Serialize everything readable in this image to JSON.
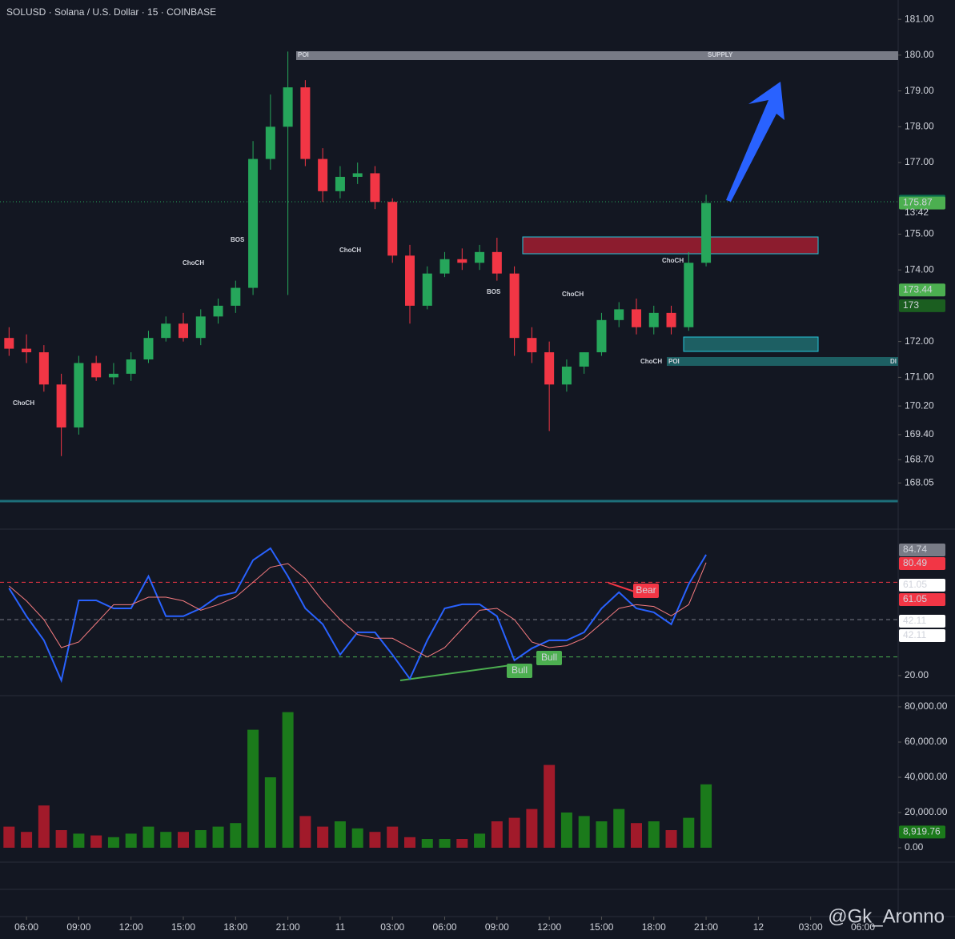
{
  "watermark": "@Gk_Aronno",
  "chart_data": [
    {
      "type": "candlestick",
      "title": "SOLUSD · Solana / U.S. Dollar · 15 · COINBASE",
      "x": [
        -1,
        0,
        1,
        2,
        3,
        4,
        5,
        6,
        7,
        8,
        9,
        10,
        11,
        12,
        13,
        14,
        15,
        16,
        17,
        18,
        19,
        20,
        21,
        22,
        23,
        24,
        25,
        26,
        27,
        28,
        29,
        30,
        31,
        32,
        33,
        34,
        35,
        36,
        37,
        38,
        39
      ],
      "opens": [
        172.1,
        171.8,
        171.7,
        170.8,
        169.6,
        171.4,
        171.0,
        171.1,
        171.5,
        172.1,
        172.5,
        172.1,
        172.7,
        173.0,
        173.5,
        177.1,
        178.0,
        179.1,
        177.1,
        176.2,
        176.6,
        176.7,
        175.9,
        174.4,
        173.0,
        173.9,
        174.3,
        174.2,
        174.5,
        173.9,
        172.1,
        171.7,
        170.8,
        171.3,
        171.7,
        172.6,
        172.9,
        172.4,
        172.8,
        172.4,
        174.2
      ],
      "highs": [
        172.4,
        172.2,
        171.9,
        171.1,
        171.6,
        171.6,
        171.4,
        171.7,
        172.3,
        172.7,
        172.8,
        172.9,
        173.2,
        173.7,
        177.6,
        178.9,
        180.1,
        179.3,
        177.4,
        176.9,
        177.0,
        176.9,
        176.0,
        174.7,
        174.1,
        174.5,
        174.6,
        174.7,
        174.9,
        174.1,
        172.4,
        172.0,
        171.5,
        171.7,
        172.8,
        173.1,
        173.2,
        173.0,
        173.0,
        174.5,
        176.1
      ],
      "lows": [
        171.6,
        171.4,
        170.6,
        168.8,
        169.4,
        170.9,
        170.8,
        170.9,
        171.4,
        172.0,
        172.0,
        171.9,
        172.5,
        172.8,
        173.3,
        176.8,
        173.3,
        176.9,
        175.9,
        176.0,
        176.4,
        175.7,
        174.2,
        172.5,
        172.9,
        173.8,
        174.0,
        174.0,
        173.7,
        171.6,
        171.4,
        169.5,
        170.6,
        171.1,
        171.6,
        172.4,
        172.2,
        172.2,
        172.2,
        172.3,
        174.1
      ],
      "closes": [
        171.8,
        171.7,
        170.8,
        169.6,
        171.4,
        171.0,
        171.1,
        171.5,
        172.1,
        172.5,
        172.1,
        172.7,
        173.0,
        173.5,
        177.1,
        178.0,
        179.1,
        177.1,
        176.2,
        176.6,
        176.7,
        175.9,
        174.4,
        173.0,
        173.9,
        174.3,
        174.2,
        174.5,
        173.9,
        172.1,
        171.7,
        170.8,
        171.3,
        171.7,
        172.6,
        172.9,
        172.4,
        172.8,
        172.4,
        174.2,
        175.87
      ],
      "up_color": "#26a65b",
      "down_color": "#f23645",
      "xlim": [
        -1.52,
        49.93
      ],
      "ylim": [
        167.52,
        181.54
      ],
      "yticks": [
        {
          "value": 181,
          "label": "181.00"
        },
        {
          "value": 180,
          "label": "180.00"
        },
        {
          "value": 179,
          "label": "179.00"
        },
        {
          "value": 178,
          "label": "178.00"
        },
        {
          "value": 177,
          "label": "177.00"
        },
        {
          "value": 175,
          "label": "175.00"
        },
        {
          "value": 174,
          "label": "174.00"
        },
        {
          "value": 172,
          "label": "172.00"
        },
        {
          "value": 171,
          "label": "171.00"
        },
        {
          "value": 170.2,
          "label": "170.20"
        },
        {
          "value": 169.4,
          "label": "169.40"
        },
        {
          "value": 168.7,
          "label": "168.70"
        },
        {
          "value": 168.05,
          "label": "168.05"
        }
      ],
      "tags": [
        {
          "value": 175.92,
          "color": "#0b6e4f"
        },
        {
          "value": 175.87,
          "color": "#4caf50"
        },
        {
          "value": 173.44,
          "color": "#4caf50"
        },
        {
          "value": 173,
          "color": "#1b5e20"
        }
      ],
      "countdown": "13:42",
      "annotations": [
        "POI",
        "SUPPLY",
        "ChoCH",
        "BOS",
        "ChoCH",
        "ChoCH",
        "BOS",
        "ChoCH",
        "ChoCH",
        "ChoCH",
        "POI",
        "DI"
      ]
    },
    {
      "type": "line",
      "x": [
        -1,
        0,
        1,
        2,
        3,
        4,
        5,
        6,
        7,
        8,
        9,
        10,
        11,
        12,
        13,
        14,
        15,
        16,
        17,
        18,
        19,
        20,
        21,
        22,
        23,
        24,
        25,
        26,
        27,
        28,
        29,
        30,
        31,
        32,
        33,
        34,
        35,
        36,
        37,
        38,
        39
      ],
      "series": [
        {
          "color": "#2962ff",
          "values": [
            66.8,
            51.8,
            38.9,
            17.4,
            60.3,
            60.3,
            56,
            56,
            73.2,
            51.8,
            51.8,
            56,
            62.5,
            64.6,
            81.8,
            88.2,
            73.2,
            56,
            47.5,
            31.2,
            43.2,
            43.2,
            31.2,
            18.3,
            38.9,
            56,
            58.2,
            58.2,
            51.8,
            28.2,
            34.6,
            38.9,
            38.9,
            43.2,
            56,
            64.6,
            56,
            53.9,
            47.5,
            68.9,
            84.74
          ]
        },
        {
          "color": "#f77c80",
          "values": [
            68,
            60,
            50,
            35,
            38,
            48,
            58,
            58,
            62,
            62,
            60,
            55,
            58,
            62,
            70,
            78,
            80,
            72,
            60,
            50,
            42,
            40,
            40,
            35,
            30,
            35,
            45,
            55,
            56,
            50,
            38,
            35,
            36,
            40,
            48,
            56,
            58,
            57,
            52,
            58,
            80.49
          ]
        }
      ],
      "xlim": [
        -1.52,
        49.93
      ],
      "ylim": [
        9.7,
        98
      ],
      "yticks": [
        {
          "value": 20,
          "label": "20.00"
        }
      ],
      "levels": [
        {
          "value": 70,
          "color": "#f23645"
        },
        {
          "value": 50,
          "color": "#787b86"
        },
        {
          "value": 30,
          "color": "#4caf50"
        }
      ],
      "tags": [
        {
          "value": 84.74,
          "color": "#787b86"
        },
        {
          "value": 80.49,
          "color": "#f23645"
        },
        {
          "value": 61.05,
          "color": "#ffffff"
        },
        {
          "value": 61.05,
          "color": "#f23645"
        },
        {
          "value": 42.11,
          "color": "#ffffff"
        },
        {
          "value": 42.11,
          "color": "#ffffff"
        }
      ],
      "annotations": [
        "Bull",
        "Bull",
        "Bear"
      ]
    },
    {
      "type": "bar",
      "x": [
        -1,
        0,
        1,
        2,
        3,
        4,
        5,
        6,
        7,
        8,
        9,
        10,
        11,
        12,
        13,
        14,
        15,
        16,
        17,
        18,
        19,
        20,
        21,
        22,
        23,
        24,
        25,
        26,
        27,
        28,
        29,
        30,
        31,
        32,
        33,
        34,
        35,
        36,
        37,
        38,
        39
      ],
      "values": [
        12000,
        9000,
        24000,
        10000,
        8000,
        7000,
        6000,
        8000,
        12000,
        9000,
        9000,
        10000,
        12000,
        14000,
        67000,
        40000,
        77000,
        18000,
        12000,
        15000,
        11000,
        9000,
        12000,
        6000,
        5000,
        5000,
        5000,
        8000,
        15000,
        17000,
        22000,
        47000,
        20000,
        18000,
        15000,
        22000,
        14000,
        15000,
        10000,
        17000,
        36000
      ],
      "xlim": [
        -1.52,
        49.93
      ],
      "ylim": [
        -7270,
        85900
      ],
      "yticks": [
        {
          "value": 0,
          "label": "0.00"
        },
        {
          "value": 20000,
          "label": "20,000.00"
        },
        {
          "value": 40000,
          "label": "40,000.00"
        },
        {
          "value": 60000,
          "label": "60,000.00"
        },
        {
          "value": 80000,
          "label": "80,000.00"
        }
      ],
      "tags": [
        {
          "value": 8919.76,
          "label": "8,919.76",
          "color": "#1b7a1b"
        }
      ],
      "xticks": [
        {
          "value": 0,
          "label": "06:00"
        },
        {
          "value": 3,
          "label": "09:00"
        },
        {
          "value": 6,
          "label": "12:00"
        },
        {
          "value": 9,
          "label": "15:00"
        },
        {
          "value": 12,
          "label": "18:00"
        },
        {
          "value": 15,
          "label": "21:00"
        },
        {
          "value": 18,
          "label": "11"
        },
        {
          "value": 21,
          "label": "03:00"
        },
        {
          "value": 24,
          "label": "06:00"
        },
        {
          "value": 27,
          "label": "09:00"
        },
        {
          "value": 30,
          "label": "12:00"
        },
        {
          "value": 33,
          "label": "15:00"
        },
        {
          "value": 36,
          "label": "18:00"
        },
        {
          "value": 39,
          "label": "21:00"
        },
        {
          "value": 42,
          "label": "12"
        },
        {
          "value": 45,
          "label": "03:00"
        },
        {
          "value": 48,
          "label": "06:00"
        }
      ]
    }
  ]
}
